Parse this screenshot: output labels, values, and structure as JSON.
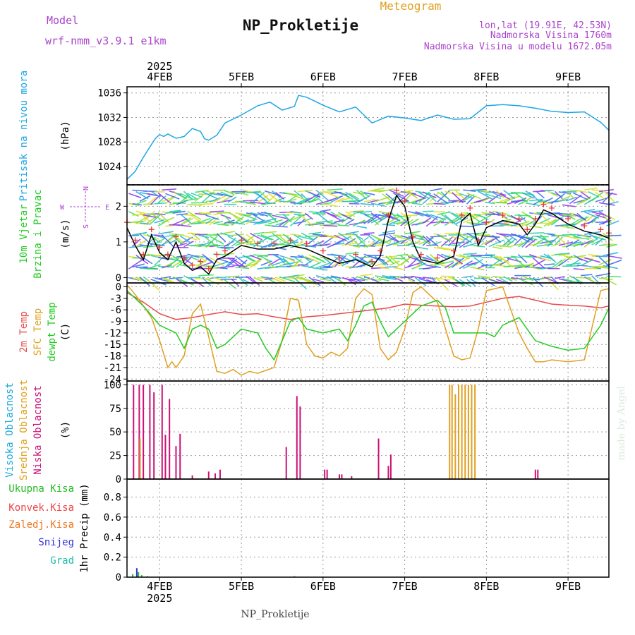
{
  "header": {
    "model_label": "Model",
    "model_name": "wrf-nmm_v3.9.1 e1km",
    "supertitle": "Meteogram",
    "title": "NP_Prokletije",
    "lonlat": "lon,lat (19.91E, 42.53N)",
    "elevation": "Nadmorska Visina 1760m",
    "model_elevation": "Nadmorska Visina u modelu 1672.05m",
    "footer": "NP_Prokletije",
    "watermark": "made by Angel"
  },
  "colors": {
    "pressure": "#1ea6e6",
    "wind_label": "#22cc22",
    "wind_compass": "#b040d0",
    "temp2m": "#e84a4a",
    "sfc_temp": "#e0a020",
    "dewpt": "#22cc22",
    "visoka": "#20aadd",
    "srednja": "#e0a020",
    "niska": "#cc1177",
    "ukupna": "#22bb22",
    "konvek": "#ee4444",
    "zaledj": "#ee7722",
    "snijeg": "#3333dd",
    "grad": "#22bbaa",
    "title_purple": "#aa44cc",
    "supertitle_orange": "#e0a020"
  },
  "chart_data": [
    {
      "panel": "pressure",
      "type": "line",
      "ylabel": "(hPa)",
      "side_labels": [
        "Pritisak na nivou mora"
      ],
      "yticks": [
        1024,
        1028,
        1032,
        1036
      ],
      "ylim": [
        1021,
        1037
      ],
      "xlim": [
        3.6,
        9.5
      ],
      "series": [
        {
          "color_key": "pressure",
          "x": [
            3.6,
            3.7,
            3.8,
            3.9,
            3.95,
            4.0,
            4.05,
            4.1,
            4.2,
            4.3,
            4.4,
            4.5,
            4.55,
            4.6,
            4.7,
            4.8,
            5.0,
            5.2,
            5.35,
            5.5,
            5.65,
            5.7,
            5.8,
            6.0,
            6.2,
            6.4,
            6.6,
            6.8,
            7.0,
            7.2,
            7.4,
            7.6,
            7.8,
            8.0,
            8.2,
            8.4,
            8.6,
            8.8,
            9.0,
            9.2,
            9.4,
            9.5
          ],
          "y": [
            1021.9,
            1023.2,
            1025.5,
            1027.6,
            1028.6,
            1029.2,
            1028.9,
            1029.3,
            1028.6,
            1028.9,
            1030.2,
            1029.7,
            1028.5,
            1028.3,
            1029.1,
            1031.1,
            1032.4,
            1033.9,
            1034.5,
            1033.2,
            1033.8,
            1035.6,
            1035.3,
            1034.0,
            1032.9,
            1033.7,
            1031.1,
            1032.2,
            1031.9,
            1031.5,
            1032.4,
            1031.7,
            1031.8,
            1033.9,
            1034.1,
            1033.9,
            1033.5,
            1033.0,
            1032.8,
            1032.9,
            1031.2,
            1029.9
          ]
        }
      ]
    },
    {
      "panel": "wind",
      "type": "line",
      "ylabel": "(m/s)",
      "side_labels": [
        "10m Vjetar",
        "Brzina i Pravac"
      ],
      "compass": [
        "N",
        "W",
        "E",
        "S"
      ],
      "yticks": [
        0,
        1,
        2
      ],
      "ylim": [
        -0.15,
        2.6
      ],
      "xlim": [
        3.6,
        9.5
      ],
      "series": [
        {
          "name": "speed",
          "color": "#000000",
          "x": [
            3.6,
            3.7,
            3.8,
            3.9,
            4.0,
            4.1,
            4.2,
            4.3,
            4.4,
            4.5,
            4.6,
            4.7,
            4.8,
            5.0,
            5.2,
            5.4,
            5.6,
            5.8,
            6.0,
            6.2,
            6.4,
            6.6,
            6.7,
            6.8,
            6.9,
            7.0,
            7.1,
            7.2,
            7.4,
            7.6,
            7.7,
            7.8,
            7.9,
            8.0,
            8.2,
            8.4,
            8.5,
            8.6,
            8.7,
            8.8,
            9.0,
            9.2,
            9.4,
            9.5
          ],
          "y": [
            1.4,
            0.9,
            0.5,
            1.2,
            0.7,
            0.5,
            1.0,
            0.4,
            0.2,
            0.3,
            0.1,
            0.5,
            0.6,
            0.9,
            0.8,
            0.8,
            0.9,
            0.8,
            0.6,
            0.4,
            0.5,
            0.3,
            0.6,
            1.6,
            2.3,
            2.0,
            1.0,
            0.5,
            0.4,
            0.6,
            1.6,
            1.8,
            0.9,
            1.4,
            1.6,
            1.5,
            1.2,
            1.5,
            1.9,
            1.8,
            1.5,
            1.3,
            1.2,
            1.1
          ]
        }
      ]
    },
    {
      "panel": "temperature",
      "type": "line",
      "ylabel": "(C)",
      "side_labels": [
        "2m Temp",
        "SFC Temp",
        "dewpt Temp"
      ],
      "yticks": [
        0,
        -3,
        -6,
        -9,
        -12,
        -15,
        -18,
        -21,
        -24
      ],
      "ylim": [
        -24.5,
        1.0
      ],
      "xlim": [
        3.6,
        9.5
      ],
      "series": [
        {
          "name": "2m Temp",
          "color_key": "temp2m",
          "x": [
            3.6,
            3.8,
            4.0,
            4.2,
            4.4,
            4.6,
            4.8,
            5.0,
            5.2,
            5.4,
            5.6,
            5.8,
            6.0,
            6.2,
            6.4,
            6.6,
            6.8,
            7.0,
            7.2,
            7.4,
            7.6,
            7.8,
            8.0,
            8.2,
            8.4,
            8.6,
            8.8,
            9.0,
            9.2,
            9.4,
            9.5
          ],
          "y": [
            -1.5,
            -4.0,
            -7.0,
            -8.5,
            -8.0,
            -7.2,
            -6.5,
            -7.2,
            -7.0,
            -7.8,
            -8.5,
            -7.8,
            -7.5,
            -7.0,
            -6.5,
            -6.0,
            -5.5,
            -4.5,
            -4.8,
            -5.0,
            -5.2,
            -5.0,
            -4.0,
            -3.0,
            -2.5,
            -3.5,
            -4.5,
            -4.8,
            -5.0,
            -5.5,
            -5.0
          ]
        },
        {
          "name": "SFC Temp",
          "color_key": "sfc_temp",
          "x": [
            3.6,
            3.7,
            3.8,
            3.9,
            4.0,
            4.1,
            4.15,
            4.2,
            4.3,
            4.4,
            4.5,
            4.6,
            4.7,
            4.8,
            4.9,
            5.0,
            5.1,
            5.2,
            5.4,
            5.5,
            5.6,
            5.7,
            5.8,
            5.9,
            6.0,
            6.1,
            6.2,
            6.3,
            6.4,
            6.5,
            6.6,
            6.7,
            6.8,
            6.9,
            7.0,
            7.1,
            7.2,
            7.4,
            7.6,
            7.7,
            7.8,
            7.9,
            8.0,
            8.2,
            8.4,
            8.5,
            8.6,
            8.7,
            8.8,
            9.0,
            9.2,
            9.3,
            9.4,
            9.5
          ],
          "y": [
            0.5,
            -2.0,
            -5.0,
            -8.0,
            -14.0,
            -21.0,
            -19.5,
            -21.0,
            -18.0,
            -7.0,
            -4.5,
            -13.0,
            -22.0,
            -22.5,
            -21.5,
            -23.0,
            -22.0,
            -22.5,
            -21.0,
            -14.0,
            -3.0,
            -3.5,
            -15.0,
            -18.0,
            -18.5,
            -17.0,
            -18.0,
            -16.0,
            -3.0,
            -0.5,
            -2.0,
            -16.0,
            -19.0,
            -17.0,
            -11.0,
            -1.5,
            0.0,
            -4.0,
            -18.0,
            -19.0,
            -18.5,
            -11.0,
            -1.0,
            0.0,
            -12.0,
            -16.0,
            -19.5,
            -19.5,
            -19.0,
            -19.5,
            -19.0,
            -10.0,
            -1.0,
            -0.5
          ]
        },
        {
          "name": "dewpt Temp",
          "color_key": "dewpt",
          "x": [
            3.6,
            3.8,
            4.0,
            4.2,
            4.3,
            4.4,
            4.5,
            4.6,
            4.7,
            4.8,
            5.0,
            5.2,
            5.3,
            5.4,
            5.5,
            5.6,
            5.7,
            5.8,
            6.0,
            6.2,
            6.3,
            6.4,
            6.5,
            6.6,
            6.7,
            6.8,
            6.9,
            7.0,
            7.2,
            7.4,
            7.5,
            7.6,
            7.8,
            8.0,
            8.1,
            8.2,
            8.4,
            8.5,
            8.6,
            8.8,
            9.0,
            9.2,
            9.4,
            9.5
          ],
          "y": [
            -1.0,
            -5.0,
            -10.0,
            -12.0,
            -16.0,
            -11.0,
            -10.0,
            -11.0,
            -16.0,
            -15.0,
            -11.0,
            -12.0,
            -16.0,
            -19.0,
            -14.0,
            -9.0,
            -8.0,
            -11.0,
            -12.0,
            -11.0,
            -14.0,
            -10.0,
            -5.0,
            -4.0,
            -9.0,
            -13.0,
            -11.0,
            -9.0,
            -5.0,
            -3.5,
            -5.5,
            -12.0,
            -12.0,
            -12.0,
            -13.0,
            -10.0,
            -8.0,
            -11.0,
            -14.0,
            -15.5,
            -16.5,
            -16.0,
            -10.0,
            -5.5
          ]
        }
      ]
    },
    {
      "panel": "clouds",
      "type": "bar",
      "ylabel": "(%)",
      "side_labels": [
        "Visoka Oblacnost",
        "Srednja Oblacnost",
        "Niska Oblacnost"
      ],
      "yticks": [
        0,
        25,
        50,
        75,
        100
      ],
      "ylim": [
        0,
        104
      ],
      "xlim": [
        3.6,
        9.5
      ],
      "series": [
        {
          "name": "Niska Oblacnost",
          "color_key": "niska",
          "x": [
            3.68,
            3.75,
            3.8,
            3.88,
            3.93,
            4.03,
            4.07,
            4.12,
            4.2,
            4.25,
            4.4,
            4.6,
            4.68,
            4.74,
            5.55,
            5.68,
            5.72,
            6.02,
            6.05,
            6.2,
            6.23,
            6.35,
            6.68,
            6.8,
            6.83,
            8.6,
            8.63
          ],
          "values": [
            100,
            100,
            100,
            100,
            92,
            100,
            47,
            85,
            35,
            48,
            4,
            8,
            6,
            10,
            34,
            88,
            77,
            10,
            10,
            5,
            5,
            3,
            43,
            14,
            26,
            10,
            10
          ]
        },
        {
          "name": "Srednja Oblacnost",
          "color_key": "srednja",
          "x": [
            3.76,
            7.55,
            7.58,
            7.62,
            7.66,
            7.7,
            7.74,
            7.78,
            7.82,
            7.86
          ],
          "values": [
            43,
            100,
            100,
            90,
            100,
            100,
            100,
            100,
            100,
            100
          ]
        },
        {
          "name": "Visoka Oblacnost",
          "color_key": "visoka",
          "x": [],
          "values": []
        }
      ]
    },
    {
      "panel": "precipitation",
      "type": "bar",
      "ylabel": "1hr Precip (mm)",
      "side_labels": [
        "Ukupna Kisa",
        "Konvek.Kisa",
        "Zaledj.Kisa",
        "Snijeg",
        "Grad"
      ],
      "yticks": [
        0,
        0.2,
        0.4,
        0.6,
        0.8
      ],
      "ylim": [
        0,
        0.98
      ],
      "xlim": [
        3.6,
        9.5
      ],
      "series": [
        {
          "name": "Snijeg",
          "color_key": "snijeg",
          "x": [
            3.72
          ],
          "values": [
            0.09
          ]
        },
        {
          "name": "Ukupna Kisa",
          "color_key": "ukupna",
          "x": [
            3.67,
            3.74,
            3.78,
            3.85,
            5.65
          ],
          "values": [
            0.03,
            0.05,
            0.02,
            0.01,
            0.01
          ]
        }
      ]
    }
  ],
  "x_axis": {
    "year_label": "2025",
    "day_ticks": [
      {
        "x": 4.0,
        "label": "4FEB"
      },
      {
        "x": 5.0,
        "label": "5FEB"
      },
      {
        "x": 6.0,
        "label": "6FEB"
      },
      {
        "x": 7.0,
        "label": "7FEB"
      },
      {
        "x": 8.0,
        "label": "8FEB"
      },
      {
        "x": 9.0,
        "label": "9FEB"
      }
    ]
  }
}
